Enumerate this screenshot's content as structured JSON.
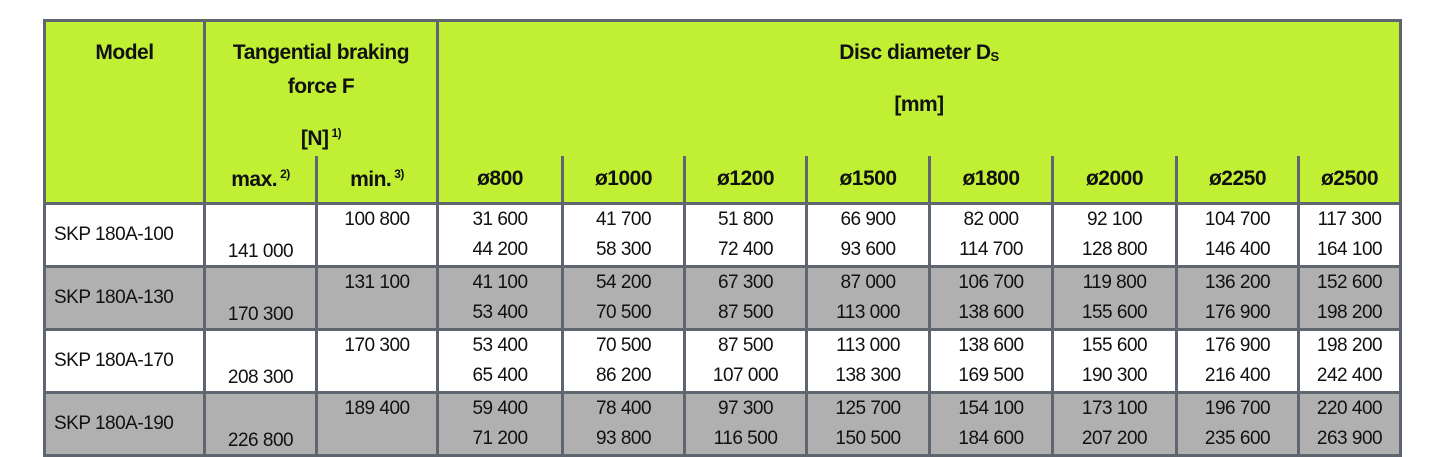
{
  "header": {
    "model": "Model",
    "force_line1": "Tangential braking",
    "force_line2": "force F",
    "force_unit": "[N]",
    "force_unit_note": "1)",
    "disc_title": "Disc diameter D",
    "disc_title_sub": "S",
    "disc_unit": "[mm]",
    "max": "max.",
    "max_note": "2)",
    "min": "min.",
    "min_note": "3)",
    "diameters": [
      "ø800",
      "ø1000",
      "ø1200",
      "ø1500",
      "ø1800",
      "ø2000",
      "ø2250",
      "ø2500"
    ]
  },
  "colors": {
    "header_bg": "#c0ef34",
    "alt_row_bg": "#b0b0b0",
    "border": "#5f6670"
  },
  "rows": [
    {
      "model": "SKP 180A-100",
      "max": "141 000",
      "min": "100 800",
      "values": [
        [
          "31 600",
          "44 200"
        ],
        [
          "41 700",
          "58 300"
        ],
        [
          "51 800",
          "72 400"
        ],
        [
          "66 900",
          "93 600"
        ],
        [
          "82 000",
          "114 700"
        ],
        [
          "92 100",
          "128 800"
        ],
        [
          "104 700",
          "146 400"
        ],
        [
          "117 300",
          "164 100"
        ]
      ]
    },
    {
      "model": "SKP 180A-130",
      "max": "170 300",
      "min": "131 100",
      "values": [
        [
          "41 100",
          "53 400"
        ],
        [
          "54 200",
          "70 500"
        ],
        [
          "67 300",
          "87 500"
        ],
        [
          "87 000",
          "113 000"
        ],
        [
          "106 700",
          "138 600"
        ],
        [
          "119 800",
          "155 600"
        ],
        [
          "136 200",
          "176 900"
        ],
        [
          "152 600",
          "198 200"
        ]
      ]
    },
    {
      "model": "SKP 180A-170",
      "max": "208 300",
      "min": "170 300",
      "values": [
        [
          "53 400",
          "65 400"
        ],
        [
          "70 500",
          "86 200"
        ],
        [
          "87 500",
          "107 000"
        ],
        [
          "113 000",
          "138 300"
        ],
        [
          "138 600",
          "169 500"
        ],
        [
          "155 600",
          "190 300"
        ],
        [
          "176 900",
          "216 400"
        ],
        [
          "198 200",
          "242 400"
        ]
      ]
    },
    {
      "model": "SKP 180A-190",
      "max": "226 800",
      "min": "189 400",
      "values": [
        [
          "59 400",
          "71 200"
        ],
        [
          "78 400",
          "93 800"
        ],
        [
          "97 300",
          "116 500"
        ],
        [
          "125 700",
          "150 500"
        ],
        [
          "154 100",
          "184 600"
        ],
        [
          "173 100",
          "207 200"
        ],
        [
          "196 700",
          "235 600"
        ],
        [
          "220 400",
          "263 900"
        ]
      ]
    }
  ]
}
